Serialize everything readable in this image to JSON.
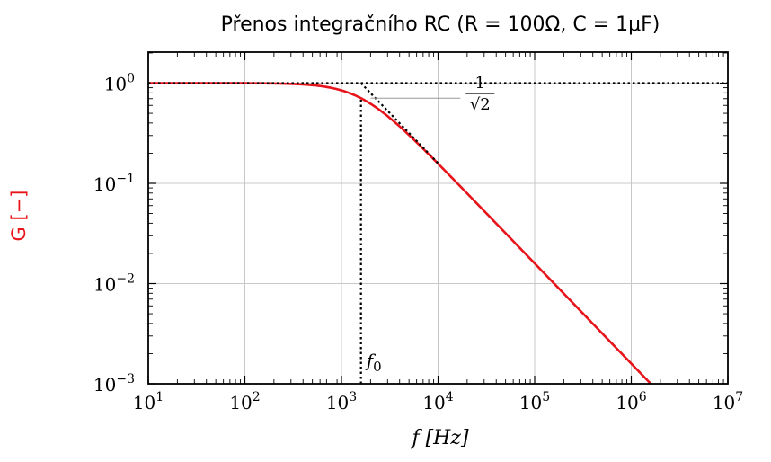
{
  "chart_data": {
    "type": "line",
    "title": "Přenos integračního RC  (R = 100Ω, C = 1μF)",
    "xlabel": "f  [Hz]",
    "ylabel": "G [−]",
    "x_scale": "log",
    "y_scale": "log",
    "xlim": [
      10,
      10000000
    ],
    "ylim": [
      0.001,
      2
    ],
    "x_ticks": [
      {
        "value": 10,
        "base": "10",
        "exp": "1"
      },
      {
        "value": 100,
        "base": "10",
        "exp": "2"
      },
      {
        "value": 1000,
        "base": "10",
        "exp": "3"
      },
      {
        "value": 10000,
        "base": "10",
        "exp": "4"
      },
      {
        "value": 100000,
        "base": "10",
        "exp": "5"
      },
      {
        "value": 1000000,
        "base": "10",
        "exp": "6"
      },
      {
        "value": 10000000,
        "base": "10",
        "exp": "7"
      }
    ],
    "y_ticks": [
      {
        "value": 0.001,
        "base": "10",
        "exp": "−3"
      },
      {
        "value": 0.01,
        "base": "10",
        "exp": "−2"
      },
      {
        "value": 0.1,
        "base": "10",
        "exp": "−1"
      },
      {
        "value": 1,
        "base": "10",
        "exp": "0"
      }
    ],
    "grid": true,
    "series": [
      {
        "kind": "transfer-curve",
        "color": "#e8141b",
        "style": "solid",
        "f0": 1591.55,
        "x_range": [
          10,
          1591550
        ]
      },
      {
        "kind": "asymptote-flat",
        "color": "#000000",
        "style": "dotted",
        "x": [
          10,
          10000000
        ],
        "y": [
          1,
          1
        ]
      },
      {
        "kind": "asymptote-slope",
        "color": "#000000",
        "style": "dotted",
        "x": [
          1591.55,
          10000
        ],
        "y": [
          1,
          0.159
        ]
      },
      {
        "kind": "cutoff-marker",
        "color": "#000000",
        "style": "dotted",
        "x": [
          1591.55,
          1591.55
        ],
        "y": [
          0.001,
          0.7071
        ]
      }
    ],
    "annotations": {
      "f0_label": {
        "text": "f",
        "sub": "0",
        "x": 1591.55,
        "y": 0.0016
      },
      "sqrt_label": {
        "numerator": "1",
        "denominator": "√2",
        "x": 25000,
        "y": 0.82
      },
      "sqrt_leader": {
        "x": [
          2000,
          17000
        ],
        "y": 0.7071
      }
    }
  }
}
